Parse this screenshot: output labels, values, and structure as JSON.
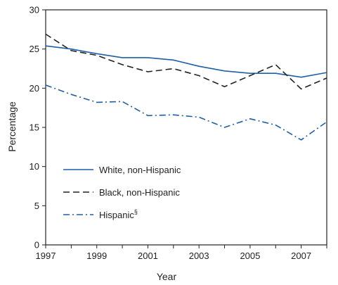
{
  "chart_data": {
    "type": "line",
    "title": "",
    "xlabel": "Year",
    "ylabel": "Percentage",
    "xlim": [
      1997,
      2008
    ],
    "ylim": [
      0,
      30
    ],
    "yticks": [
      0,
      5,
      10,
      15,
      20,
      25,
      30
    ],
    "xticks": [
      1997,
      1999,
      2001,
      2003,
      2005,
      2007
    ],
    "grid": false,
    "legend_position": "bottom-left",
    "x": [
      1997,
      1998,
      1999,
      2000,
      2001,
      2002,
      2003,
      2004,
      2005,
      2006,
      2007,
      2008
    ],
    "series": [
      {
        "name": "White, non-Hispanic",
        "name_superscript": "",
        "color": "#1f5fa6",
        "dash": "solid",
        "values": [
          25.4,
          25.0,
          24.4,
          23.9,
          23.9,
          23.6,
          22.8,
          22.2,
          21.9,
          21.9,
          21.4,
          22.0
        ]
      },
      {
        "name": "Black, non-Hispanic",
        "name_superscript": "",
        "color": "#222222",
        "dash": "dashed",
        "values": [
          26.9,
          24.8,
          24.2,
          23.0,
          22.1,
          22.5,
          21.6,
          20.2,
          21.6,
          23.0,
          19.9,
          21.3
        ]
      },
      {
        "name": "Hispanic",
        "name_superscript": "§",
        "color": "#1f5fa6",
        "dash": "dashdot",
        "values": [
          20.4,
          19.2,
          18.2,
          18.3,
          16.5,
          16.6,
          16.3,
          15.0,
          16.1,
          15.3,
          13.4,
          15.7
        ]
      }
    ]
  }
}
